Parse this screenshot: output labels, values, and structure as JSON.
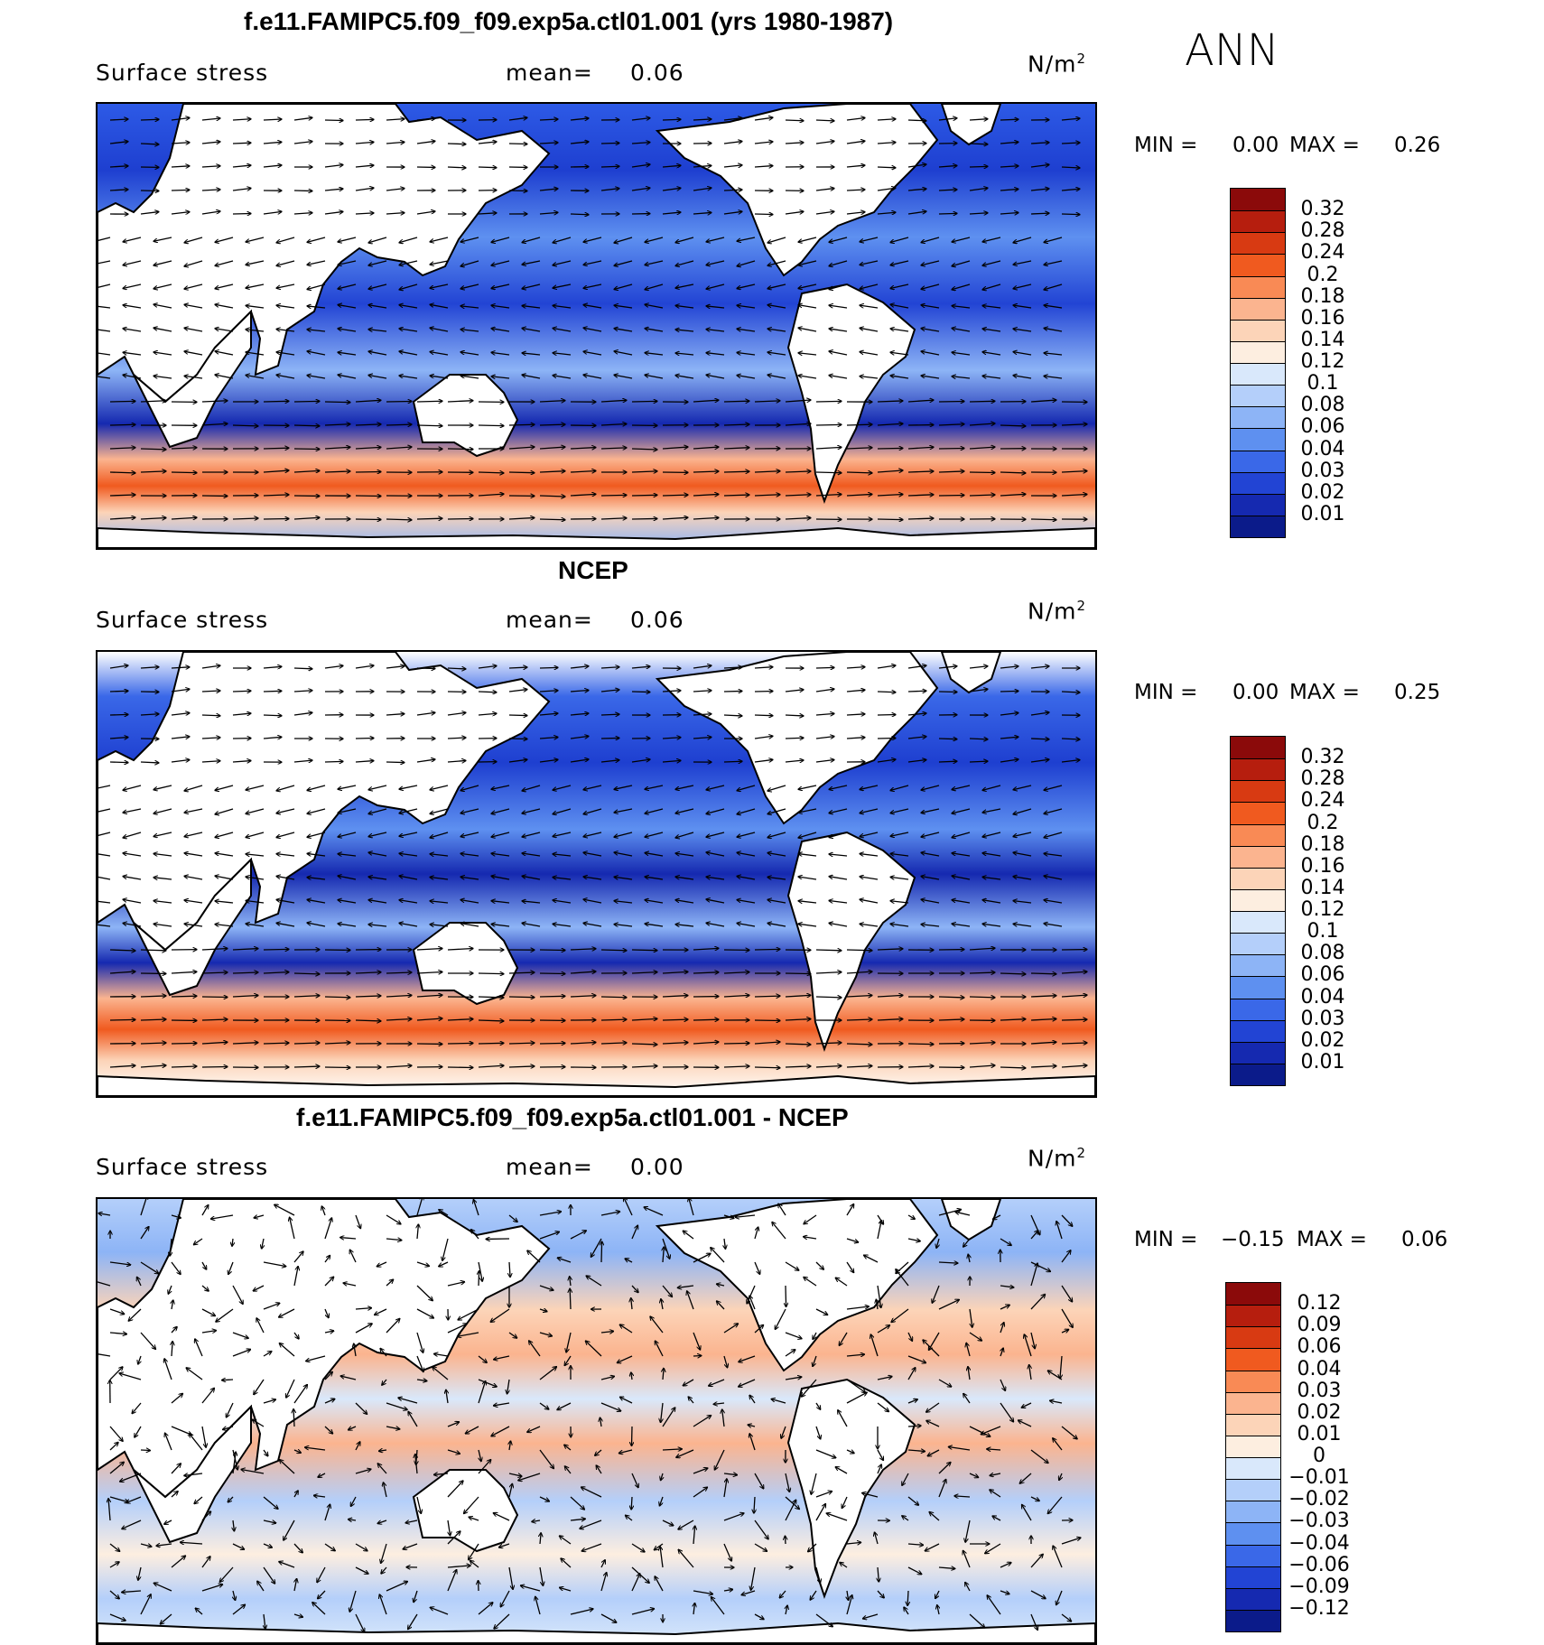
{
  "season": "ANN",
  "panels": [
    {
      "title": "f.e11.FAMIPC5.f09_f09.exp5a.ctl01.001 (yrs 1980-1987)",
      "field": "Surface stress",
      "mean_label": "mean=",
      "mean_value": "0.06",
      "units": "N/m",
      "units_sup": "2",
      "min_label": "MIN =",
      "min_value": "0.00",
      "max_label": "MAX =",
      "max_value": "0.26"
    },
    {
      "title": "NCEP",
      "field": "Surface stress",
      "mean_label": "mean=",
      "mean_value": "0.06",
      "units": "N/m",
      "units_sup": "2",
      "min_label": "MIN =",
      "min_value": "0.00",
      "max_label": "MAX =",
      "max_value": "0.25"
    },
    {
      "title": "f.e11.FAMIPC5.f09_f09.exp5a.ctl01.001 - NCEP",
      "field": "Surface stress",
      "mean_label": "mean=",
      "mean_value": "0.00",
      "units": "N/m",
      "units_sup": "2",
      "min_label": "MIN =",
      "min_value": "−0.15",
      "max_label": "MAX =",
      "max_value": "0.06"
    }
  ],
  "colorbars": {
    "absolute": {
      "levels": [
        "0.32",
        "0.28",
        "0.24",
        "0.2",
        "0.18",
        "0.16",
        "0.14",
        "0.12",
        "0.1",
        "0.08",
        "0.06",
        "0.04",
        "0.03",
        "0.02",
        "0.01"
      ],
      "colors": [
        "#8b0a0a",
        "#b61e0e",
        "#d83a12",
        "#f05a1f",
        "#f98a55",
        "#fbb48f",
        "#fcd4b8",
        "#fdeee0",
        "#d9e8fb",
        "#b4cffa",
        "#8db4f6",
        "#5e90f0",
        "#3a68e8",
        "#2244d4",
        "#1529b0",
        "#0b1b8a"
      ]
    },
    "difference": {
      "levels": [
        "0.12",
        "0.09",
        "0.06",
        "0.04",
        "0.03",
        "0.02",
        "0.01",
        "0",
        "−0.01",
        "−0.02",
        "−0.03",
        "−0.04",
        "−0.06",
        "−0.09",
        "−0.12"
      ],
      "colors": [
        "#8b0a0a",
        "#b61e0e",
        "#d83a12",
        "#f05a1f",
        "#f98a55",
        "#fbb48f",
        "#fcd4b8",
        "#fdeee0",
        "#d9e8fb",
        "#b4cffa",
        "#8db4f6",
        "#5e90f0",
        "#3a68e8",
        "#2244d4",
        "#1529b0",
        "#0b1b8a"
      ]
    }
  },
  "chart_data": [
    {
      "type": "heatmap",
      "title": "f.e11.FAMIPC5.f09_f09.exp5a.ctl01.001 (yrs 1980-1987)",
      "variable": "Surface stress",
      "units": "N/m^2",
      "season": "ANN",
      "mean": 0.06,
      "min": 0.0,
      "max": 0.26,
      "contour_levels": [
        0.01,
        0.02,
        0.03,
        0.04,
        0.06,
        0.08,
        0.1,
        0.12,
        0.14,
        0.16,
        0.18,
        0.2,
        0.24,
        0.28,
        0.32
      ],
      "overlay": "vectors"
    },
    {
      "type": "heatmap",
      "title": "NCEP",
      "variable": "Surface stress",
      "units": "N/m^2",
      "season": "ANN",
      "mean": 0.06,
      "min": 0.0,
      "max": 0.25,
      "contour_levels": [
        0.01,
        0.02,
        0.03,
        0.04,
        0.06,
        0.08,
        0.1,
        0.12,
        0.14,
        0.16,
        0.18,
        0.2,
        0.24,
        0.28,
        0.32
      ],
      "overlay": "vectors"
    },
    {
      "type": "heatmap",
      "title": "f.e11.FAMIPC5.f09_f09.exp5a.ctl01.001 - NCEP",
      "variable": "Surface stress",
      "units": "N/m^2",
      "season": "ANN",
      "mean": 0.0,
      "min": -0.15,
      "max": 0.06,
      "contour_levels": [
        -0.12,
        -0.09,
        -0.06,
        -0.04,
        -0.03,
        -0.02,
        -0.01,
        0,
        0.01,
        0.02,
        0.03,
        0.04,
        0.06,
        0.09,
        0.12
      ],
      "overlay": "vectors"
    }
  ]
}
